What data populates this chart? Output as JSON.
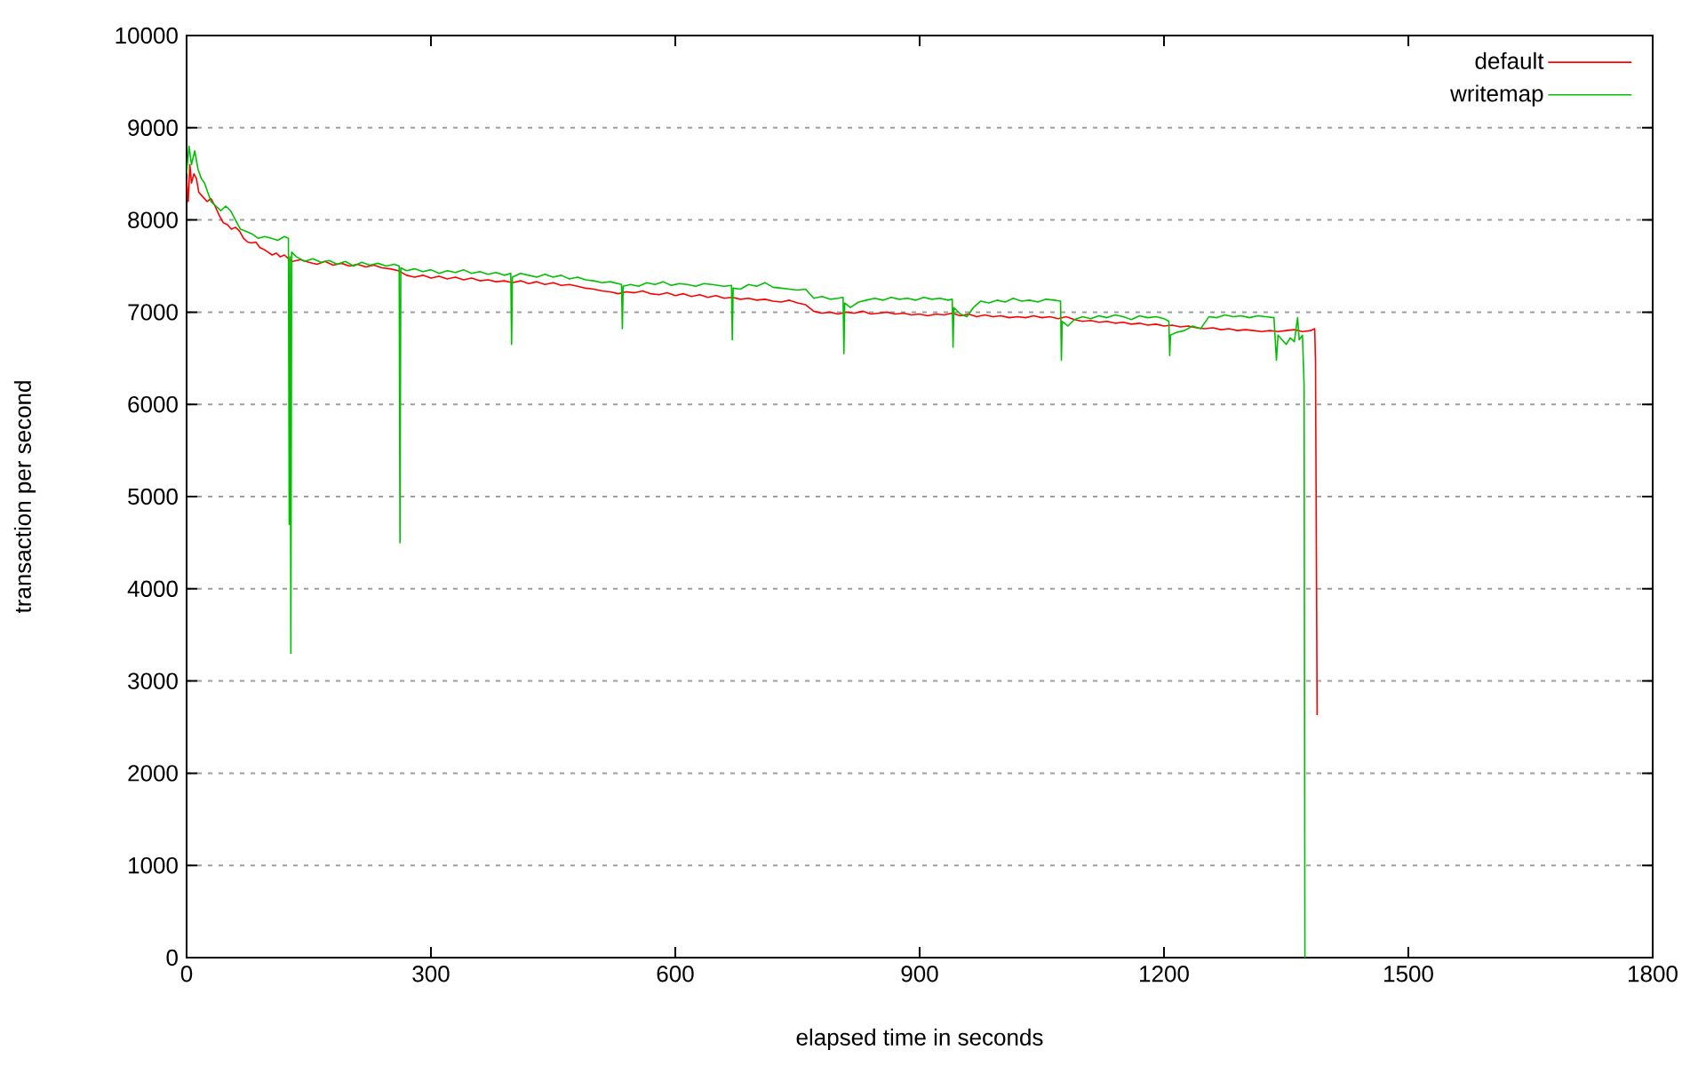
{
  "chart_data": {
    "type": "line",
    "xlabel": "elapsed time in seconds",
    "ylabel": "transaction per second",
    "xlim": [
      0,
      1800
    ],
    "ylim": [
      0,
      10000
    ],
    "xticks": [
      0,
      300,
      600,
      900,
      1200,
      1500,
      1800
    ],
    "yticks": [
      0,
      1000,
      2000,
      3000,
      4000,
      5000,
      6000,
      7000,
      8000,
      9000,
      10000
    ],
    "grid": "y",
    "legend": "top right",
    "marker": "none",
    "line_style": "solid",
    "series": [
      {
        "name": "default",
        "color": "#ff0000",
        "x": [
          0,
          2,
          4,
          6,
          9,
          12,
          15,
          20,
          25,
          30,
          35,
          40,
          45,
          50,
          55,
          60,
          65,
          70,
          75,
          80,
          85,
          90,
          95,
          100,
          105,
          110,
          115,
          120,
          125,
          130,
          140,
          150,
          160,
          170,
          180,
          190,
          200,
          210,
          220,
          230,
          240,
          250,
          260,
          270,
          280,
          290,
          300,
          310,
          320,
          330,
          340,
          350,
          360,
          370,
          380,
          390,
          400,
          410,
          420,
          430,
          440,
          450,
          460,
          470,
          480,
          490,
          500,
          510,
          520,
          530,
          540,
          550,
          560,
          570,
          580,
          590,
          600,
          610,
          620,
          630,
          640,
          650,
          660,
          670,
          680,
          690,
          700,
          710,
          720,
          730,
          740,
          750,
          760,
          770,
          780,
          790,
          800,
          810,
          820,
          830,
          840,
          850,
          860,
          870,
          880,
          890,
          900,
          910,
          920,
          930,
          940,
          950,
          960,
          970,
          980,
          990,
          1000,
          1010,
          1020,
          1030,
          1040,
          1050,
          1060,
          1070,
          1080,
          1090,
          1100,
          1110,
          1120,
          1130,
          1140,
          1150,
          1160,
          1170,
          1180,
          1190,
          1200,
          1210,
          1220,
          1230,
          1240,
          1250,
          1260,
          1270,
          1280,
          1290,
          1300,
          1310,
          1320,
          1330,
          1340,
          1350,
          1360,
          1370,
          1380,
          1385,
          1386,
          1388
        ],
        "values": [
          8450,
          8200,
          8600,
          8400,
          8500,
          8450,
          8300,
          8250,
          8200,
          8230,
          8150,
          8050,
          7970,
          7950,
          7900,
          7920,
          7880,
          7800,
          7760,
          7750,
          7760,
          7700,
          7680,
          7650,
          7620,
          7640,
          7600,
          7620,
          7580,
          7550,
          7570,
          7540,
          7520,
          7550,
          7510,
          7530,
          7500,
          7520,
          7490,
          7510,
          7480,
          7470,
          7450,
          7400,
          7380,
          7400,
          7370,
          7390,
          7360,
          7380,
          7350,
          7370,
          7340,
          7350,
          7330,
          7340,
          7320,
          7340,
          7310,
          7330,
          7300,
          7320,
          7290,
          7300,
          7280,
          7260,
          7250,
          7230,
          7220,
          7200,
          7220,
          7210,
          7230,
          7200,
          7190,
          7210,
          7180,
          7200,
          7170,
          7190,
          7160,
          7180,
          7150,
          7160,
          7140,
          7150,
          7130,
          7140,
          7120,
          7110,
          7130,
          7100,
          7080,
          7010,
          6990,
          7000,
          6980,
          7000,
          6990,
          7010,
          6980,
          6990,
          7000,
          6980,
          6990,
          6970,
          6980,
          6960,
          6980,
          6970,
          6990,
          6960,
          6980,
          6950,
          6970,
          6950,
          6960,
          6940,
          6950,
          6940,
          6960,
          6940,
          6950,
          6930,
          6950,
          6920,
          6900,
          6910,
          6890,
          6900,
          6880,
          6890,
          6870,
          6880,
          6860,
          6870,
          6850,
          6860,
          6840,
          6850,
          6830,
          6820,
          6830,
          6810,
          6820,
          6800,
          6810,
          6800,
          6790,
          6800,
          6790,
          6800,
          6810,
          6790,
          6800,
          6820,
          6470,
          2630
        ]
      },
      {
        "name": "writemap",
        "color": "#00c000",
        "x": [
          0,
          3,
          6,
          10,
          14,
          18,
          22,
          26,
          30,
          36,
          42,
          48,
          54,
          60,
          66,
          72,
          80,
          88,
          96,
          104,
          112,
          120,
          125,
          126,
          127,
          128,
          129,
          135,
          145,
          155,
          165,
          175,
          185,
          195,
          205,
          215,
          225,
          235,
          245,
          255,
          261,
          262,
          263,
          270,
          280,
          290,
          300,
          310,
          320,
          330,
          340,
          350,
          360,
          370,
          380,
          390,
          398,
          399,
          400,
          410,
          420,
          430,
          440,
          450,
          460,
          470,
          480,
          490,
          500,
          510,
          520,
          534,
          535,
          536,
          545,
          555,
          565,
          575,
          585,
          595,
          605,
          615,
          625,
          635,
          645,
          660,
          669,
          670,
          671,
          680,
          690,
          700,
          710,
          720,
          730,
          740,
          750,
          760,
          770,
          780,
          790,
          800,
          806,
          807,
          808,
          815,
          825,
          835,
          845,
          855,
          865,
          875,
          885,
          895,
          905,
          915,
          925,
          935,
          940,
          941,
          942,
          950,
          958,
          966,
          975,
          985,
          995,
          1005,
          1015,
          1025,
          1035,
          1045,
          1055,
          1065,
          1073,
          1074,
          1075,
          1082,
          1090,
          1100,
          1110,
          1120,
          1130,
          1140,
          1150,
          1160,
          1170,
          1180,
          1190,
          1200,
          1206,
          1207,
          1208,
          1215,
          1225,
          1235,
          1245,
          1255,
          1265,
          1275,
          1285,
          1295,
          1305,
          1315,
          1325,
          1335,
          1338,
          1340,
          1345,
          1350,
          1355,
          1360,
          1364,
          1366,
          1370,
          1372,
          1373
        ],
        "values": [
          8500,
          8800,
          8600,
          8750,
          8550,
          8450,
          8400,
          8300,
          8200,
          8150,
          8100,
          8150,
          8100,
          8000,
          7900,
          7880,
          7850,
          7800,
          7820,
          7800,
          7780,
          7820,
          7800,
          4700,
          7600,
          3300,
          7650,
          7600,
          7550,
          7580,
          7540,
          7560,
          7520,
          7550,
          7500,
          7540,
          7510,
          7530,
          7500,
          7520,
          7500,
          4500,
          7480,
          7450,
          7470,
          7440,
          7460,
          7420,
          7450,
          7430,
          7460,
          7420,
          7440,
          7410,
          7430,
          7400,
          7420,
          6650,
          7380,
          7420,
          7400,
          7380,
          7410,
          7380,
          7400,
          7360,
          7380,
          7350,
          7340,
          7320,
          7330,
          7300,
          6820,
          7280,
          7300,
          7280,
          7320,
          7300,
          7330,
          7290,
          7310,
          7300,
          7280,
          7310,
          7300,
          7280,
          7290,
          6700,
          7260,
          7250,
          7300,
          7280,
          7320,
          7270,
          7260,
          7250,
          7240,
          7250,
          7150,
          7170,
          7140,
          7150,
          7160,
          6550,
          7100,
          7050,
          7110,
          7130,
          7150,
          7130,
          7160,
          7140,
          7150,
          7130,
          7160,
          7140,
          7150,
          7130,
          7140,
          6620,
          7050,
          6980,
          6950,
          7050,
          7120,
          7100,
          7130,
          7110,
          7150,
          7120,
          7130,
          7110,
          7140,
          7130,
          7120,
          6480,
          6900,
          6850,
          6920,
          6950,
          6930,
          6960,
          6940,
          6970,
          6950,
          6920,
          6960,
          6940,
          6950,
          6930,
          6900,
          6530,
          6750,
          6780,
          6800,
          6850,
          6820,
          6950,
          6940,
          6970,
          6950,
          6960,
          6940,
          6960,
          6950,
          6940,
          6480,
          6750,
          6700,
          6650,
          6720,
          6680,
          6940,
          6700,
          6750,
          6210,
          0
        ]
      }
    ]
  }
}
